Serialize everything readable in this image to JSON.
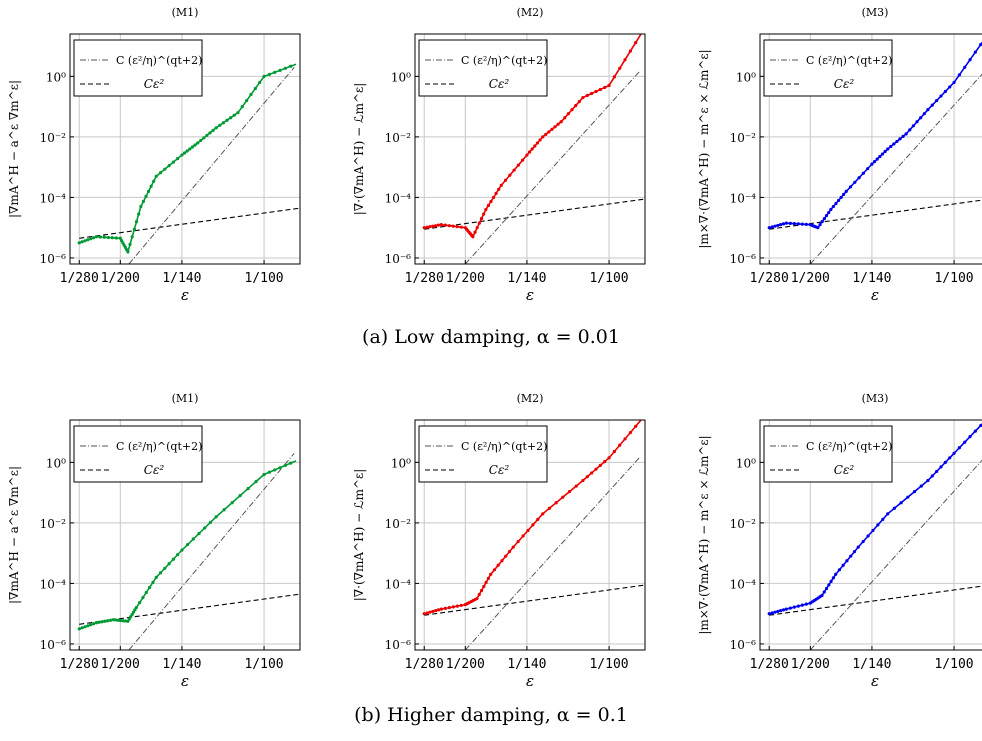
{
  "captions": {
    "a": "(a) Low damping, α = 0.01",
    "b": "(b) Higher damping, α = 0.1"
  },
  "legend": {
    "ref1": "C (ε²/η)^(qt+2)",
    "ref2": "Cε²"
  },
  "axis": {
    "xlabel": "ε",
    "x_ticks": [
      "1/280",
      "1/200",
      "1/140",
      "1/100"
    ],
    "y_ticks": [
      "10⁻⁶",
      "10⁻⁴",
      "10⁻²",
      "10⁰"
    ]
  },
  "colors": {
    "M1": "#009933",
    "M2": "#ee0000",
    "M3": "#0000ee"
  },
  "panel_titles": [
    "(M1)",
    "(M2)",
    "(M3)"
  ],
  "ylabels": [
    "|∇mA^H − a^ε ∇m^ε|",
    "|∇·(∇mA^H) − ℒm^ε|",
    "|m×∇·(∇mA^H) − m^ε × ℒm^ε|"
  ],
  "chart_data": [
    {
      "type": "line",
      "title": "(M1)",
      "row": "a",
      "color": "#009933",
      "ylabel": "|∇mA^H − a^ε ∇m^ε|",
      "xlabel": "ε",
      "xscale": "reciprocal",
      "yscale": "log",
      "ylim_log10": [
        -6.2,
        1.4
      ],
      "series": [
        {
          "name": "",
          "x": [
            "1/280",
            "1/240",
            "1/200",
            "1/190",
            "1/175",
            "1/160",
            "1/140",
            "1/130",
            "1/120",
            "1/110",
            "1/100",
            "1/90"
          ],
          "log10_y": [
            -5.5,
            -5.3,
            -5.35,
            -5.8,
            -4.3,
            -3.3,
            -2.6,
            -2.2,
            -1.7,
            -1.2,
            0.0,
            0.4
          ]
        }
      ]
    },
    {
      "type": "line",
      "title": "(M2)",
      "row": "a",
      "color": "#ee0000",
      "ylabel": "|∇·(∇mA^H) − ℒm^ε|",
      "xlabel": "ε",
      "xscale": "reciprocal",
      "yscale": "log",
      "ylim_log10": [
        -6.2,
        1.4
      ],
      "series": [
        {
          "name": "",
          "x": [
            "1/280",
            "1/240",
            "1/200",
            "1/190",
            "1/175",
            "1/160",
            "1/140",
            "1/130",
            "1/120",
            "1/110",
            "1/100",
            "1/90"
          ],
          "log10_y": [
            -5.0,
            -4.9,
            -5.0,
            -5.3,
            -4.4,
            -3.6,
            -2.6,
            -2.0,
            -1.5,
            -0.7,
            -0.3,
            1.4
          ]
        }
      ]
    },
    {
      "type": "line",
      "title": "(M3)",
      "row": "a",
      "color": "#0000ee",
      "ylabel": "|m×∇·(∇mA^H) − m^ε × ℒm^ε|",
      "xlabel": "ε",
      "xscale": "reciprocal",
      "yscale": "log",
      "ylim_log10": [
        -6.2,
        1.4
      ],
      "series": [
        {
          "name": "",
          "x": [
            "1/280",
            "1/240",
            "1/200",
            "1/190",
            "1/175",
            "1/160",
            "1/140",
            "1/130",
            "1/120",
            "1/110",
            "1/100",
            "1/90"
          ],
          "log10_y": [
            -5.0,
            -4.85,
            -4.9,
            -5.0,
            -4.4,
            -3.8,
            -2.9,
            -2.4,
            -1.9,
            -1.1,
            -0.2,
            1.3
          ]
        }
      ]
    },
    {
      "type": "line",
      "title": "(M1)",
      "row": "b",
      "color": "#009933",
      "ylabel": "|∇mA^H − a^ε ∇m^ε|",
      "xlabel": "ε",
      "xscale": "reciprocal",
      "yscale": "log",
      "ylim_log10": [
        -6.2,
        1.4
      ],
      "series": [
        {
          "name": "",
          "x": [
            "1/280",
            "1/240",
            "1/210",
            "1/190",
            "1/180",
            "1/160",
            "1/140",
            "1/120",
            "1/100",
            "1/90"
          ],
          "log10_y": [
            -5.5,
            -5.3,
            -5.2,
            -5.25,
            -4.8,
            -3.8,
            -2.9,
            -1.8,
            -0.4,
            0.05
          ]
        }
      ]
    },
    {
      "type": "line",
      "title": "(M2)",
      "row": "b",
      "color": "#ee0000",
      "ylabel": "|∇·(∇mA^H) − ℒm^ε|",
      "xlabel": "ε",
      "xscale": "reciprocal",
      "yscale": "log",
      "ylim_log10": [
        -6.2,
        1.4
      ],
      "series": [
        {
          "name": "",
          "x": [
            "1/280",
            "1/240",
            "1/200",
            "1/185",
            "1/170",
            "1/150",
            "1/130",
            "1/110",
            "1/100",
            "1/90"
          ],
          "log10_y": [
            -5.0,
            -4.85,
            -4.7,
            -4.5,
            -3.7,
            -2.8,
            -1.7,
            -0.6,
            0.15,
            1.4
          ]
        }
      ]
    },
    {
      "type": "line",
      "title": "(M3)",
      "row": "b",
      "color": "#0000ee",
      "ylabel": "|m×∇·(∇mA^H) − m^ε × ℒm^ε|",
      "xlabel": "ε",
      "xscale": "reciprocal",
      "yscale": "log",
      "ylim_log10": [
        -6.2,
        1.4
      ],
      "series": [
        {
          "name": "",
          "x": [
            "1/280",
            "1/240",
            "1/200",
            "1/185",
            "1/170",
            "1/150",
            "1/130",
            "1/110",
            "1/100",
            "1/90"
          ],
          "log10_y": [
            -5.0,
            -4.85,
            -4.65,
            -4.4,
            -3.7,
            -2.8,
            -1.7,
            -0.6,
            0.3,
            1.4
          ]
        }
      ]
    }
  ]
}
